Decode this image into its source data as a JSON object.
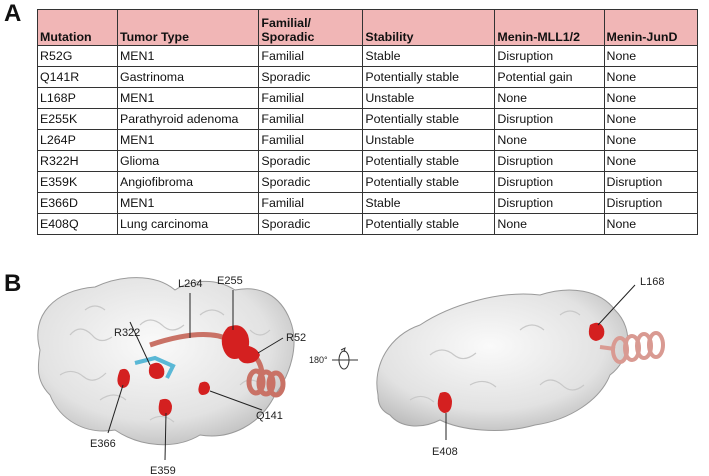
{
  "panels": {
    "a": "A",
    "b": "B"
  },
  "table": {
    "headers": [
      "Mutation",
      "Tumor Type",
      "Familial/\nSporadic",
      "Stability",
      "Menin-MLL1/2",
      "Menin-JunD"
    ],
    "rows": [
      [
        "R52G",
        "MEN1",
        "Familial",
        "Stable",
        "Disruption",
        "None"
      ],
      [
        "Q141R",
        "Gastrinoma",
        "Sporadic",
        "Potentially stable",
        "Potential gain",
        "None"
      ],
      [
        "L168P",
        "MEN1",
        "Familial",
        "Unstable",
        "None",
        "None"
      ],
      [
        "E255K",
        "Parathyroid adenoma",
        "Familial",
        "Potentially stable",
        "Disruption",
        "None"
      ],
      [
        "L264P",
        "MEN1",
        "Familial",
        "Unstable",
        "None",
        "None"
      ],
      [
        "R322H",
        "Glioma",
        "Sporadic",
        "Potentially stable",
        "Disruption",
        "None"
      ],
      [
        "E359K",
        "Angiofibroma",
        "Sporadic",
        "Potentially stable",
        "Disruption",
        "Disruption"
      ],
      [
        "E366D",
        "MEN1",
        "Familial",
        "Stable",
        "Disruption",
        "Disruption"
      ],
      [
        "E408Q",
        "Lung carcinoma",
        "Sporadic",
        "Potentially stable",
        "None",
        "None"
      ]
    ]
  },
  "structure": {
    "left_labels": {
      "l264": "L264",
      "e255": "E255",
      "r322": "R322",
      "r52": "R52",
      "q141": "Q141",
      "e366": "E366",
      "e359": "E359"
    },
    "rotation_label": "180°",
    "right_labels": {
      "l168": "L168",
      "e408": "E408"
    }
  },
  "colors": {
    "header_bg": "#f1b6b6",
    "surface": "#e6e6e6",
    "mutation_site": "#d42020",
    "helix": "#d98a80",
    "ligand": "#5ab8d6"
  }
}
